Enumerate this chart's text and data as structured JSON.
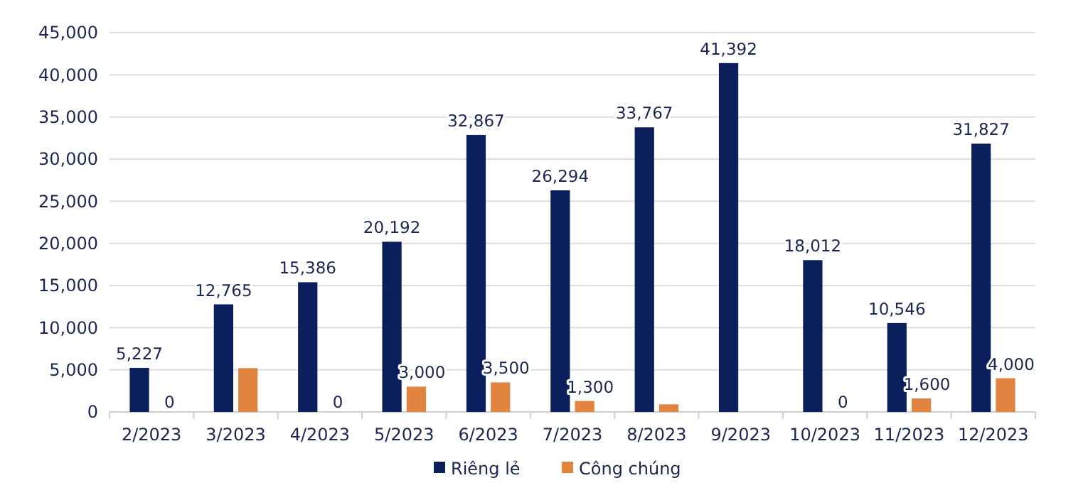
{
  "chart_data": {
    "type": "bar",
    "categories": [
      "2/2023",
      "3/2023",
      "4/2023",
      "5/2023",
      "6/2023",
      "7/2023",
      "8/2023",
      "9/2023",
      "10/2023",
      "11/2023",
      "12/2023"
    ],
    "series": [
      {
        "name": "Riêng lẻ",
        "color": "#0b1f5c",
        "values": [
          5227,
          12765,
          15386,
          20192,
          32867,
          26294,
          33767,
          41392,
          18012,
          10546,
          31827
        ],
        "value_labels": [
          "5,227",
          "12,765",
          "15,386",
          "20,192",
          "32,867",
          "26,294",
          "33,767",
          "41,392",
          "18,012",
          "10,546",
          "31,827"
        ]
      },
      {
        "name": "Công chúng",
        "color": "#e0843f",
        "values": [
          0,
          5200,
          0,
          3000,
          3500,
          1300,
          900,
          null,
          0,
          1600,
          4000
        ],
        "value_labels": [
          "0",
          null,
          "0",
          "3,000",
          "3,500",
          "1,300",
          null,
          null,
          "0",
          "1,600",
          "4,000"
        ]
      }
    ],
    "ylim": [
      0,
      45000
    ],
    "yticks": [
      {
        "value": 0,
        "label": "0"
      },
      {
        "value": 5000,
        "label": "5,000"
      },
      {
        "value": 10000,
        "label": "10,000"
      },
      {
        "value": 15000,
        "label": "15,000"
      },
      {
        "value": 20000,
        "label": "20,000"
      },
      {
        "value": 25000,
        "label": "25,000"
      },
      {
        "value": 30000,
        "label": "30,000"
      },
      {
        "value": 35000,
        "label": "35,000"
      },
      {
        "value": 40000,
        "label": "40,000"
      },
      {
        "value": 45000,
        "label": "45,000"
      }
    ],
    "grid": "y",
    "legend": "bottom"
  }
}
